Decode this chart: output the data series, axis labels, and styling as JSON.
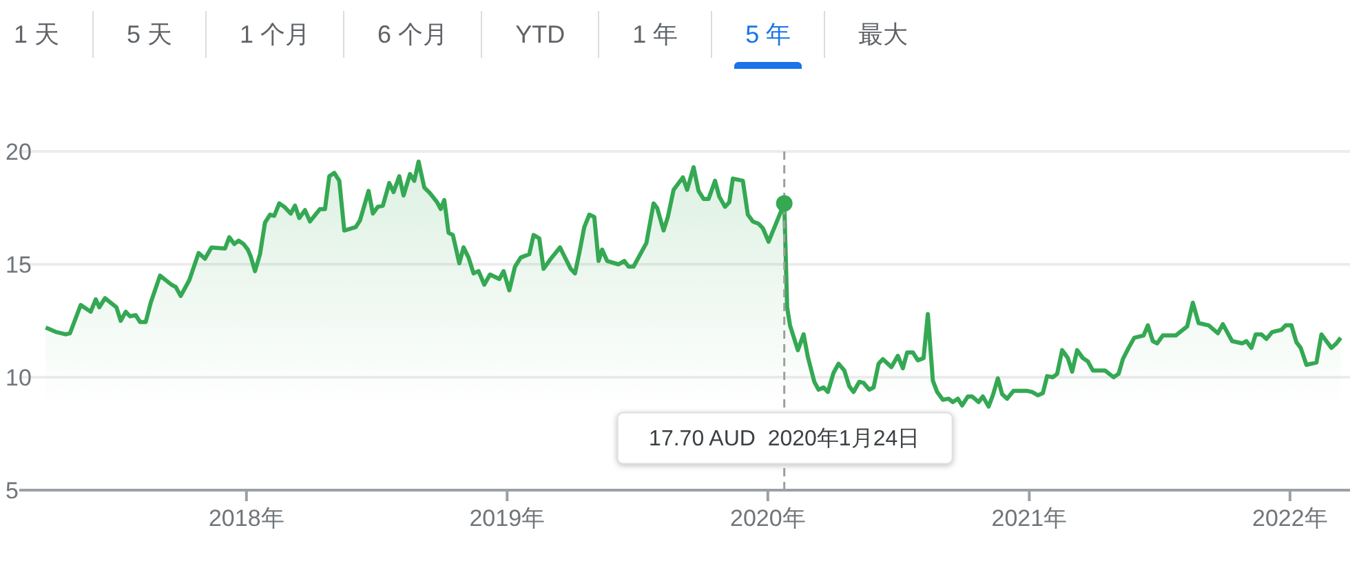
{
  "chart_data": {
    "type": "area",
    "annotations": [
      "1 天",
      "5 天",
      "1 个月",
      "6 个月",
      "YTD",
      "1 年",
      "5 年",
      "最大",
      "17.70 AUD  2020年1月24日"
    ],
    "x": [
      "2017-03-26",
      "2017-04-10",
      "2017-04-23",
      "2017-04-29",
      "2017-05-14",
      "2017-05-28",
      "2017-06-04",
      "2017-06-09",
      "2017-06-17",
      "2017-07-03",
      "2017-07-09",
      "2017-07-16",
      "2017-07-22",
      "2017-07-30",
      "2017-08-05",
      "2017-08-13",
      "2017-08-20",
      "2017-09-02",
      "2017-09-18",
      "2017-09-24",
      "2017-10-01",
      "2017-10-13",
      "2017-10-26",
      "2017-11-04",
      "2017-11-13",
      "2017-12-02",
      "2017-12-08",
      "2017-12-15",
      "2017-12-21",
      "2017-12-28",
      "2018-01-03",
      "2018-01-07",
      "2018-01-13",
      "2018-01-20",
      "2018-01-27",
      "2018-02-03",
      "2018-02-09",
      "2018-02-16",
      "2018-02-23",
      "2018-03-04",
      "2018-03-10",
      "2018-03-16",
      "2018-03-24",
      "2018-03-31",
      "2018-04-14",
      "2018-04-21",
      "2018-04-27",
      "2018-05-04",
      "2018-05-11",
      "2018-05-18",
      "2018-06-03",
      "2018-06-09",
      "2018-06-21",
      "2018-06-27",
      "2018-07-04",
      "2018-07-11",
      "2018-07-20",
      "2018-07-26",
      "2018-08-03",
      "2018-08-09",
      "2018-08-18",
      "2018-08-24",
      "2018-08-30",
      "2018-09-07",
      "2018-09-15",
      "2018-09-25",
      "2018-09-30",
      "2018-10-05",
      "2018-10-11",
      "2018-10-17",
      "2018-10-26",
      "2018-11-01",
      "2018-11-08",
      "2018-11-15",
      "2018-11-22",
      "2018-11-30",
      "2018-12-08",
      "2018-12-21",
      "2018-12-27",
      "2019-01-04",
      "2019-01-12",
      "2019-01-20",
      "2019-02-01",
      "2019-02-07",
      "2019-02-15",
      "2019-02-21",
      "2019-03-02",
      "2019-03-16",
      "2019-03-31",
      "2019-04-06",
      "2019-04-12",
      "2019-04-19",
      "2019-04-26",
      "2019-05-03",
      "2019-05-09",
      "2019-05-14",
      "2019-05-21",
      "2019-06-06",
      "2019-06-14",
      "2019-06-20",
      "2019-06-27",
      "2019-07-15",
      "2019-07-25",
      "2019-07-30",
      "2019-08-08",
      "2019-08-14",
      "2019-08-22",
      "2019-09-04",
      "2019-09-10",
      "2019-09-19",
      "2019-09-26",
      "2019-10-03",
      "2019-10-10",
      "2019-10-19",
      "2019-10-25",
      "2019-11-02",
      "2019-11-08",
      "2019-11-13",
      "2019-11-27",
      "2019-12-04",
      "2019-12-11",
      "2019-12-19",
      "2019-12-25",
      "2020-01-02",
      "2020-01-24",
      "2020-01-28",
      "2020-02-01",
      "2020-02-12",
      "2020-02-20",
      "2020-02-26",
      "2020-03-06",
      "2020-03-12",
      "2020-03-19",
      "2020-03-25",
      "2020-04-02",
      "2020-04-09",
      "2020-04-17",
      "2020-04-24",
      "2020-04-30",
      "2020-05-08",
      "2020-05-14",
      "2020-05-22",
      "2020-05-28",
      "2020-06-04",
      "2020-06-10",
      "2020-06-22",
      "2020-07-01",
      "2020-07-08",
      "2020-07-14",
      "2020-07-22",
      "2020-07-29",
      "2020-08-06",
      "2020-08-12",
      "2020-08-19",
      "2020-08-25",
      "2020-09-02",
      "2020-09-10",
      "2020-09-16",
      "2020-09-23",
      "2020-09-29",
      "2020-10-07",
      "2020-10-13",
      "2020-10-22",
      "2020-10-28",
      "2020-11-05",
      "2020-11-11",
      "2020-11-18",
      "2020-11-24",
      "2020-12-01",
      "2020-12-10",
      "2020-12-28",
      "2021-01-05",
      "2021-01-13",
      "2021-01-20",
      "2021-01-26",
      "2021-02-03",
      "2021-02-09",
      "2021-02-16",
      "2021-02-24",
      "2021-03-02",
      "2021-03-09",
      "2021-03-17",
      "2021-03-24",
      "2021-03-31",
      "2021-04-17",
      "2021-04-29",
      "2021-05-06",
      "2021-05-12",
      "2021-05-20",
      "2021-05-28",
      "2021-06-10",
      "2021-06-16",
      "2021-06-23",
      "2021-06-29",
      "2021-07-07",
      "2021-07-25",
      "2021-08-10",
      "2021-08-18",
      "2021-08-26",
      "2021-09-09",
      "2021-09-22",
      "2021-09-29",
      "2021-10-12",
      "2021-10-26",
      "2021-11-01",
      "2021-11-08",
      "2021-11-14",
      "2021-11-22",
      "2021-11-29",
      "2021-12-07",
      "2021-12-20",
      "2021-12-26",
      "2022-01-03",
      "2022-01-10",
      "2022-01-16",
      "2022-01-24",
      "2022-02-07",
      "2022-02-14",
      "2022-02-28",
      "2022-03-07",
      "2022-03-13"
    ],
    "series": [
      {
        "color": "#34a853",
        "values": [
          12.2,
          12.0,
          11.9,
          11.95,
          13.2,
          12.9,
          13.45,
          13.1,
          13.5,
          13.1,
          12.5,
          12.9,
          12.7,
          12.75,
          12.45,
          12.45,
          13.3,
          14.5,
          14.1,
          14.0,
          13.6,
          14.3,
          15.5,
          15.25,
          15.75,
          15.7,
          16.2,
          15.9,
          16.05,
          15.9,
          15.65,
          15.35,
          14.7,
          15.45,
          16.85,
          17.2,
          17.15,
          17.7,
          17.55,
          17.25,
          17.6,
          17.05,
          17.4,
          16.9,
          17.45,
          17.45,
          18.9,
          19.05,
          18.7,
          16.5,
          16.65,
          16.95,
          18.25,
          17.25,
          17.55,
          17.6,
          18.6,
          18.2,
          18.9,
          18.05,
          19.0,
          18.7,
          19.55,
          18.4,
          18.15,
          17.75,
          17.45,
          17.85,
          16.4,
          16.3,
          15.05,
          15.75,
          15.3,
          14.6,
          14.7,
          14.1,
          14.55,
          14.35,
          14.7,
          13.85,
          14.9,
          15.3,
          15.45,
          16.3,
          16.15,
          14.8,
          15.2,
          15.75,
          14.8,
          14.6,
          15.5,
          16.65,
          17.2,
          17.1,
          15.15,
          15.65,
          15.15,
          15.0,
          15.15,
          14.9,
          14.9,
          15.95,
          17.7,
          17.5,
          16.5,
          17.1,
          18.3,
          18.85,
          18.3,
          19.3,
          18.25,
          17.9,
          17.9,
          18.7,
          18.0,
          17.55,
          17.75,
          18.8,
          18.7,
          17.2,
          16.9,
          16.8,
          16.6,
          16.0,
          17.7,
          13.1,
          12.3,
          11.2,
          11.9,
          10.9,
          9.8,
          9.45,
          9.55,
          9.35,
          10.2,
          10.6,
          10.3,
          9.6,
          9.35,
          9.8,
          9.75,
          9.45,
          9.55,
          10.6,
          10.8,
          10.45,
          10.95,
          10.4,
          11.1,
          11.1,
          10.75,
          10.85,
          12.8,
          9.85,
          9.35,
          9.0,
          9.05,
          8.9,
          9.05,
          8.75,
          9.15,
          9.15,
          8.9,
          9.15,
          8.7,
          9.2,
          9.95,
          9.25,
          9.05,
          9.4,
          9.4,
          9.35,
          9.2,
          9.3,
          10.05,
          10.0,
          10.15,
          11.2,
          10.85,
          10.25,
          11.2,
          10.85,
          10.7,
          10.3,
          10.3,
          10.0,
          10.15,
          10.8,
          11.3,
          11.75,
          11.85,
          12.3,
          11.6,
          11.5,
          11.85,
          11.85,
          12.25,
          13.3,
          12.4,
          12.3,
          11.95,
          12.35,
          11.6,
          11.5,
          11.6,
          11.3,
          11.9,
          11.9,
          11.7,
          12.0,
          12.1,
          12.3,
          12.3,
          11.55,
          11.3,
          10.55,
          10.65,
          11.9,
          11.3,
          11.5,
          11.75
        ]
      }
    ],
    "xlim": [
      "2017-02-17",
      "2022-03-26"
    ],
    "xticks": [
      {
        "value": "2018-01-01",
        "label": "2018年"
      },
      {
        "value": "2019-01-01",
        "label": "2019年"
      },
      {
        "value": "2020-01-01",
        "label": "2020年"
      },
      {
        "value": "2021-01-01",
        "label": "2021年"
      },
      {
        "value": "2022-01-01",
        "label": "2022年"
      }
    ],
    "ylim": [
      5,
      20
    ],
    "yticks": [
      5,
      10,
      15,
      20
    ],
    "grid": "y",
    "ref_lines": [
      {
        "axis": "x",
        "value": "2020-01-24",
        "color": "#9e9e9e",
        "line_style": "dashed"
      }
    ]
  }
}
